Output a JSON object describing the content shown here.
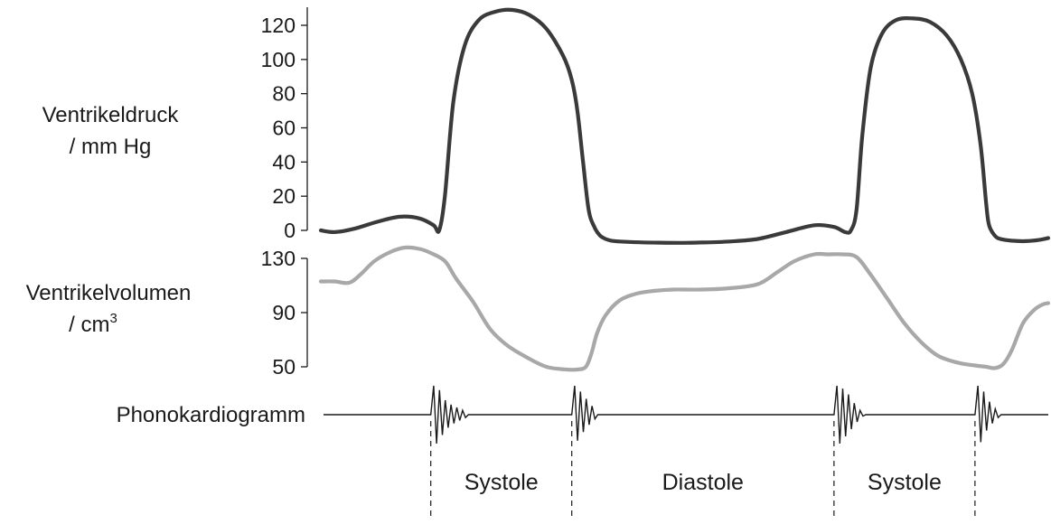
{
  "chart_data": [
    {
      "type": "line",
      "ylabel": "Ventrikeldruck",
      "yunit": "/ mm Hg",
      "ylim": [
        0,
        130
      ],
      "yticks": [
        "0",
        "20",
        "40",
        "60",
        "80",
        "100",
        "120"
      ],
      "color": "#3a3a3a",
      "series": [
        {
          "x": [
            0,
            5,
            12,
            20,
            28,
            35,
            40,
            42,
            44,
            47,
            51,
            56,
            62,
            68,
            74,
            80,
            86,
            89,
            91,
            93,
            95,
            97,
            99,
            101,
            103,
            106,
            113,
            120,
            127,
            135,
            145,
            155,
            165,
            175,
            182,
            186,
            188,
            190,
            192,
            195,
            199,
            204,
            210,
            216,
            222,
            227,
            231,
            234,
            236,
            237,
            239,
            241,
            245,
            250,
            255,
            258
          ],
          "y": [
            0,
            -1,
            1,
            5,
            8,
            7,
            3,
            0,
            20,
            75,
            108,
            123,
            128,
            129,
            126,
            118,
            102,
            88,
            70,
            40,
            12,
            2,
            -3,
            -5,
            -6,
            -6.5,
            -7,
            -7.2,
            -7.3,
            -7.1,
            -6.5,
            -5,
            -1,
            3,
            2,
            -1,
            0,
            12,
            55,
            95,
            115,
            123,
            124,
            122,
            114,
            100,
            80,
            50,
            15,
            3,
            -3,
            -5,
            -6,
            -6.3,
            -5.5,
            -4.5
          ]
        }
      ]
    },
    {
      "type": "line",
      "ylabel": "Ventrikelvolumen",
      "yunit": "/ cm3",
      "ylim": [
        50,
        130
      ],
      "yticks": [
        "50",
        "90",
        "130"
      ],
      "color": "#a8a8a8",
      "series": [
        {
          "x": [
            0,
            5,
            10,
            14,
            19,
            25,
            30,
            35,
            39,
            44,
            48,
            54,
            60,
            66,
            73,
            80,
            87,
            91,
            94,
            96,
            98,
            101,
            106,
            112,
            118,
            125,
            135,
            145,
            155,
            162,
            168,
            175,
            180,
            185,
            190,
            195,
            201,
            207,
            213,
            219,
            226,
            232,
            236,
            239,
            242,
            245,
            249,
            253,
            256,
            258
          ],
          "y": [
            113,
            113,
            112,
            118,
            128,
            135,
            138,
            137,
            134,
            128,
            115,
            98,
            78,
            66,
            57,
            50,
            48,
            48,
            50,
            60,
            75,
            88,
            99,
            104,
            106,
            107,
            107,
            108,
            111,
            120,
            128,
            133,
            133,
            133,
            131,
            118,
            100,
            82,
            68,
            58,
            53,
            51,
            50,
            49,
            52,
            62,
            82,
            92,
            96,
            97
          ]
        }
      ]
    },
    {
      "type": "line",
      "ylabel": "Phonokardiogramm",
      "color": "#1a1a1a"
    }
  ],
  "phases": [
    "Systole",
    "Diastole",
    "Systole"
  ],
  "phase_boundaries": [
    39,
    89,
    182,
    232
  ],
  "heart_sounds": [
    {
      "x": 39,
      "amplitudes": [
        1,
        -1,
        0.85,
        -0.7,
        0.5,
        -0.45,
        0.35,
        -0.3,
        0.25,
        -0.2,
        0.15,
        -0.1
      ]
    },
    {
      "x": 89,
      "amplitudes": [
        1,
        -0.9,
        0.8,
        -0.6,
        0.55,
        -0.35,
        0.3,
        -0.15
      ]
    },
    {
      "x": 182,
      "amplitudes": [
        1,
        -1,
        0.9,
        -0.75,
        0.7,
        -0.5,
        0.4,
        -0.25,
        0.15,
        -0.05
      ]
    },
    {
      "x": 232,
      "amplitudes": [
        1,
        -0.95,
        0.8,
        -0.55,
        0.45,
        -0.3,
        0.2,
        -0.1
      ]
    }
  ]
}
